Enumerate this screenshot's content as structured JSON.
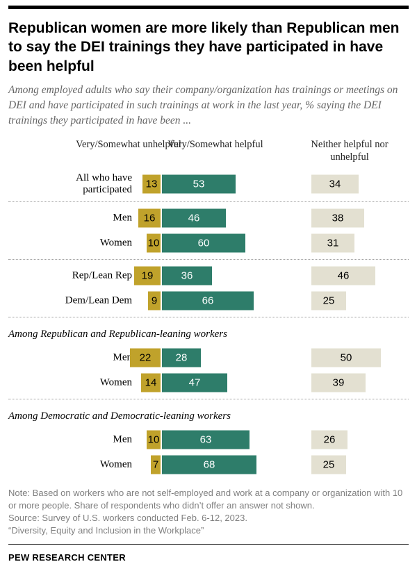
{
  "title": "Republican women are more likely than Republican men to say the DEI trainings they have participated in have been helpful",
  "subtitle": "Among employed adults who say their company/organization has trainings or meetings on DEI and have participated in such trainings at work in the last year, % saying the DEI trainings they participated in have been ...",
  "colors": {
    "unhelpful": "#c0a22b",
    "helpful": "#2e7d6a",
    "neither": "#e3e0d1"
  },
  "chart_data": {
    "type": "bar",
    "title": "Republican women are more likely than Republican men to say the DEI trainings they have participated in have been helpful",
    "unit": "%",
    "legend": [
      "Very/Somewhat unhelpful",
      "Very/Somewhat helpful",
      "Neither helpful nor unhelpful"
    ],
    "rows": [
      {
        "label": "All who have participated",
        "unhelpful": 13,
        "helpful": 53,
        "neither": 34,
        "separator_after": true
      },
      {
        "label": "Men",
        "unhelpful": 16,
        "helpful": 46,
        "neither": 38
      },
      {
        "label": "Women",
        "unhelpful": 10,
        "helpful": 60,
        "neither": 31,
        "separator_after": true
      },
      {
        "label": "Rep/Lean Rep",
        "unhelpful": 19,
        "helpful": 36,
        "neither": 46
      },
      {
        "label": "Dem/Lean Dem",
        "unhelpful": 9,
        "helpful": 66,
        "neither": 25,
        "separator_after": true
      },
      {
        "type": "section",
        "label": "Among Republican and Republican-leaning workers"
      },
      {
        "label": "Men",
        "unhelpful": 22,
        "helpful": 28,
        "neither": 50
      },
      {
        "label": "Women",
        "unhelpful": 14,
        "helpful": 47,
        "neither": 39,
        "separator_after": true
      },
      {
        "type": "section",
        "label": "Among Democratic and Democratic-leaning workers"
      },
      {
        "label": "Men",
        "unhelpful": 10,
        "helpful": 63,
        "neither": 26
      },
      {
        "label": "Women",
        "unhelpful": 7,
        "helpful": 68,
        "neither": 25
      }
    ]
  },
  "notes": {
    "note": "Note: Based on workers who are not self-employed and work at a company or organization with 10 or more people. Share of respondents who didn’t offer an answer not shown.",
    "source": "Source: Survey of U.S. workers conducted Feb. 6-12, 2023.",
    "report": "“Diversity, Equity and Inclusion in the Workplace”"
  },
  "footer": "PEW RESEARCH CENTER"
}
